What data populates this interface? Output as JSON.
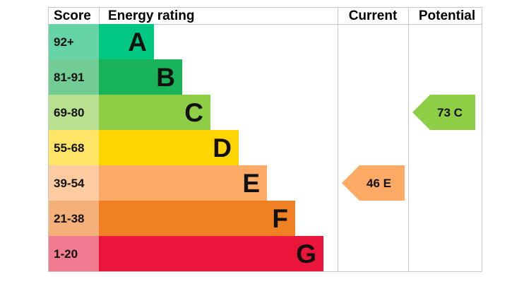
{
  "chart_data": {
    "type": "bar",
    "headers": {
      "score": "Score",
      "rating": "Energy rating",
      "current": "Current",
      "potential": "Potential"
    },
    "bands": [
      {
        "letter": "A",
        "score": "92+",
        "color": "#00c781",
        "score_bg": "#67d4a8"
      },
      {
        "letter": "B",
        "score": "81-91",
        "color": "#19b459",
        "score_bg": "#72cc96"
      },
      {
        "letter": "C",
        "score": "69-80",
        "color": "#8dce46",
        "score_bg": "#b9e08e"
      },
      {
        "letter": "D",
        "score": "55-68",
        "color": "#ffd500",
        "score_bg": "#ffe566"
      },
      {
        "letter": "E",
        "score": "39-54",
        "color": "#fcaa65",
        "score_bg": "#fdcba0"
      },
      {
        "letter": "F",
        "score": "21-38",
        "color": "#ef8023",
        "score_bg": "#f5b07a"
      },
      {
        "letter": "G",
        "score": "1-20",
        "color": "#e9153b",
        "score_bg": "#f07a8f"
      }
    ],
    "current": {
      "value": 46,
      "letter": "E",
      "label": "46  E",
      "color": "#fcaa65"
    },
    "potential": {
      "value": 73,
      "letter": "C",
      "label": "73  C",
      "color": "#8dce46"
    }
  }
}
